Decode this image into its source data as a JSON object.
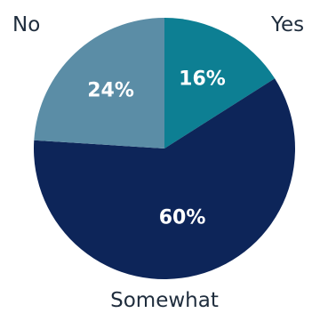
{
  "chart_data": {
    "type": "pie",
    "slices": [
      {
        "category": "Yes",
        "value": 16,
        "label": "16%",
        "color": "#0d7f93"
      },
      {
        "category": "Somewhat",
        "value": 60,
        "label": "60%",
        "color": "#0d2559"
      },
      {
        "category": "No",
        "value": 24,
        "label": "24%",
        "color": "#5b8da6"
      }
    ]
  }
}
